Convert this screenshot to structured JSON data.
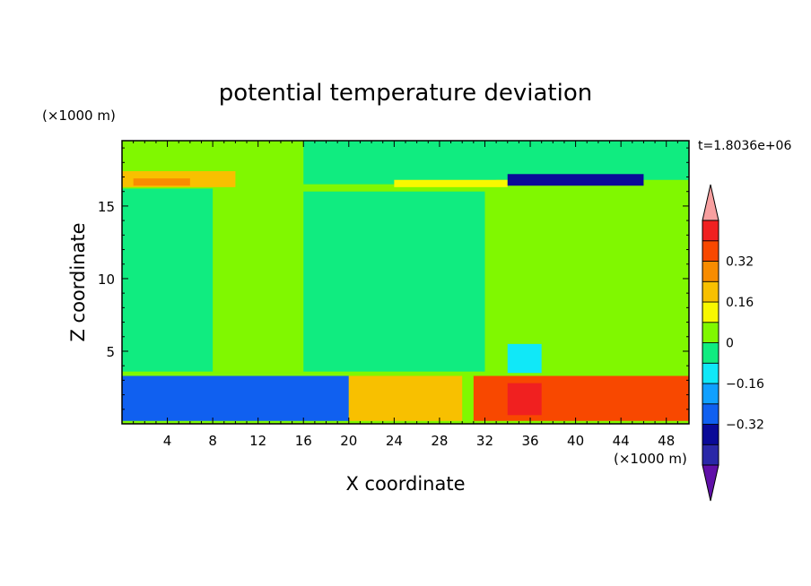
{
  "chart_data": {
    "type": "heatmap",
    "title": "potential temperature deviation",
    "xlabel": "X coordinate",
    "ylabel": "Z coordinate",
    "x_unit_label": "(×1000 m)",
    "y_unit_label": "(×1000 m)",
    "time_label": "t=1.8036e+06",
    "xlim": [
      0,
      50
    ],
    "ylim": [
      0,
      19.5
    ],
    "x_ticks": [
      4,
      8,
      12,
      16,
      20,
      24,
      28,
      32,
      36,
      40,
      44,
      48
    ],
    "x_tick_labels": [
      "4",
      "8",
      "12",
      "16",
      "20",
      "24",
      "28",
      "32",
      "36",
      "40",
      "44",
      "48"
    ],
    "y_ticks": [
      5,
      10,
      15
    ],
    "y_tick_labels": [
      "5",
      "10",
      "15"
    ],
    "colorbar": {
      "levels": [
        -0.48,
        -0.4,
        -0.32,
        -0.24,
        -0.16,
        -0.08,
        0,
        0.08,
        0.16,
        0.24,
        0.32,
        0.4,
        0.48
      ],
      "labels": [
        {
          "value": 0.32,
          "text": "0.32"
        },
        {
          "value": 0.16,
          "text": "0.16"
        },
        {
          "value": 0,
          "text": "0"
        },
        {
          "value": -0.16,
          "text": "−0.16"
        },
        {
          "value": -0.32,
          "text": "−0.32"
        }
      ],
      "colors": [
        "#6010a8",
        "#2a28a8",
        "#0a0a98",
        "#1060f0",
        "#10a0ff",
        "#10e8f8",
        "#10ec80",
        "#80f800",
        "#f8f800",
        "#f8c000",
        "#f88c00",
        "#f84800",
        "#f02020",
        "#f8a0a0"
      ]
    },
    "regions": [
      {
        "x": [
          0,
          50
        ],
        "z": [
          0,
          19.5
        ],
        "value": 0.02
      },
      {
        "x": [
          16,
          32
        ],
        "z": [
          3.6,
          16
        ],
        "value": -0.02
      },
      {
        "x": [
          0,
          8
        ],
        "z": [
          3.6,
          16.2
        ],
        "value": -0.02
      },
      {
        "x": [
          16,
          33
        ],
        "z": [
          16.5,
          19.5
        ],
        "value": -0.02
      },
      {
        "x": [
          32,
          50
        ],
        "z": [
          16.8,
          19.5
        ],
        "value": -0.02
      },
      {
        "x": [
          0,
          10
        ],
        "z": [
          16.3,
          17.4
        ],
        "value": 0.2
      },
      {
        "x": [
          1,
          6
        ],
        "z": [
          16.4,
          16.9
        ],
        "value": 0.3
      },
      {
        "x": [
          24,
          34
        ],
        "z": [
          16.3,
          16.8
        ],
        "value": 0.14
      },
      {
        "x": [
          34,
          46
        ],
        "z": [
          16.4,
          17.2
        ],
        "value": -0.35
      },
      {
        "x": [
          34,
          37
        ],
        "z": [
          3.5,
          5.5
        ],
        "value": -0.12
      },
      {
        "x": [
          0,
          20
        ],
        "z": [
          0.2,
          3.3
        ],
        "value": -0.3
      },
      {
        "x": [
          20,
          30
        ],
        "z": [
          0.2,
          3.3
        ],
        "value": 0.2
      },
      {
        "x": [
          31,
          50
        ],
        "z": [
          0.2,
          3.3
        ],
        "value": 0.33
      },
      {
        "x": [
          34,
          37
        ],
        "z": [
          0.6,
          2.8
        ],
        "value": 0.45
      }
    ]
  }
}
